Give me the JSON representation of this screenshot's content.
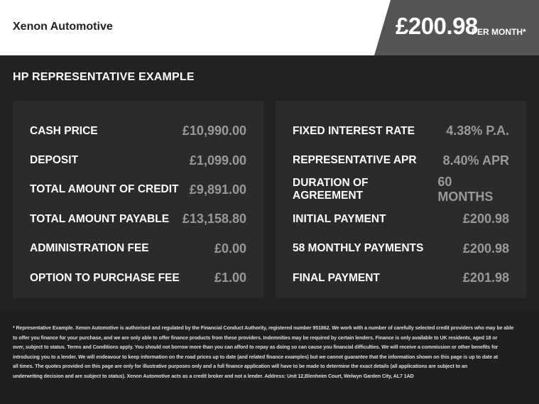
{
  "header": {
    "dealer": "Xenon Automotive",
    "price": "£200.98",
    "per_month": "PER MONTH*"
  },
  "title": "HP REPRESENTATIVE EXAMPLE",
  "left": [
    {
      "label": "CASH PRICE",
      "value": "£10,990.00"
    },
    {
      "label": "DEPOSIT",
      "value": "£1,099.00"
    },
    {
      "label": "TOTAL AMOUNT OF CREDIT",
      "value": "£9,891.00"
    },
    {
      "label": "TOTAL AMOUNT PAYABLE",
      "value": "£13,158.80"
    },
    {
      "label": "ADMINISTRATION FEE",
      "value": "£0.00"
    },
    {
      "label": "OPTION TO PURCHASE FEE",
      "value": "£1.00"
    }
  ],
  "right": [
    {
      "label": "FIXED INTEREST RATE",
      "value": "4.38% P.A."
    },
    {
      "label": "REPRESENTATIVE APR",
      "value": "8.40% APR"
    },
    {
      "label": "DURATION OF AGREEMENT",
      "value": "60 MONTHS"
    },
    {
      "label": "INITIAL PAYMENT",
      "value": "£200.98"
    },
    {
      "label": "58 MONTHLY PAYMENTS",
      "value": "£200.98"
    },
    {
      "label": "FINAL PAYMENT",
      "value": "£201.98"
    }
  ],
  "footer": [
    "* Representative Example. Xenon Automotive is authorised and regulated by the Financial Conduct Authority, registered number 951862. We work with a number of carefully selected credit providers who may be able",
    "to offer you finance for your purchase, and we are only able to offer finance products from these providers. Indemnities may be required by certain lenders. Finance is only available to UK residents, aged 18 or",
    "over, subject to status. Terms and Conditions apply. You should not borrow more than you can afford to repay as doing so can cause you financial difficulties. We will receive a commission or other benefits for",
    "introducing you to a lender. We will endeavour to keep information on the road prices up to date (and related finance examples) but we cannot guarantee that the information shown on this page is up to date at",
    "all times. The quotes provided on this page are only for illustrative purposes only and a full finance application will have to be made to determine the exact details (all applications are subject to an",
    "underwriting decision and are subject to status). Xenon Automotive acts as a credit broker and not a lender. Address: Unit 12,Blenheim Court, Welwyn Garden City, AL7 1AD"
  ]
}
